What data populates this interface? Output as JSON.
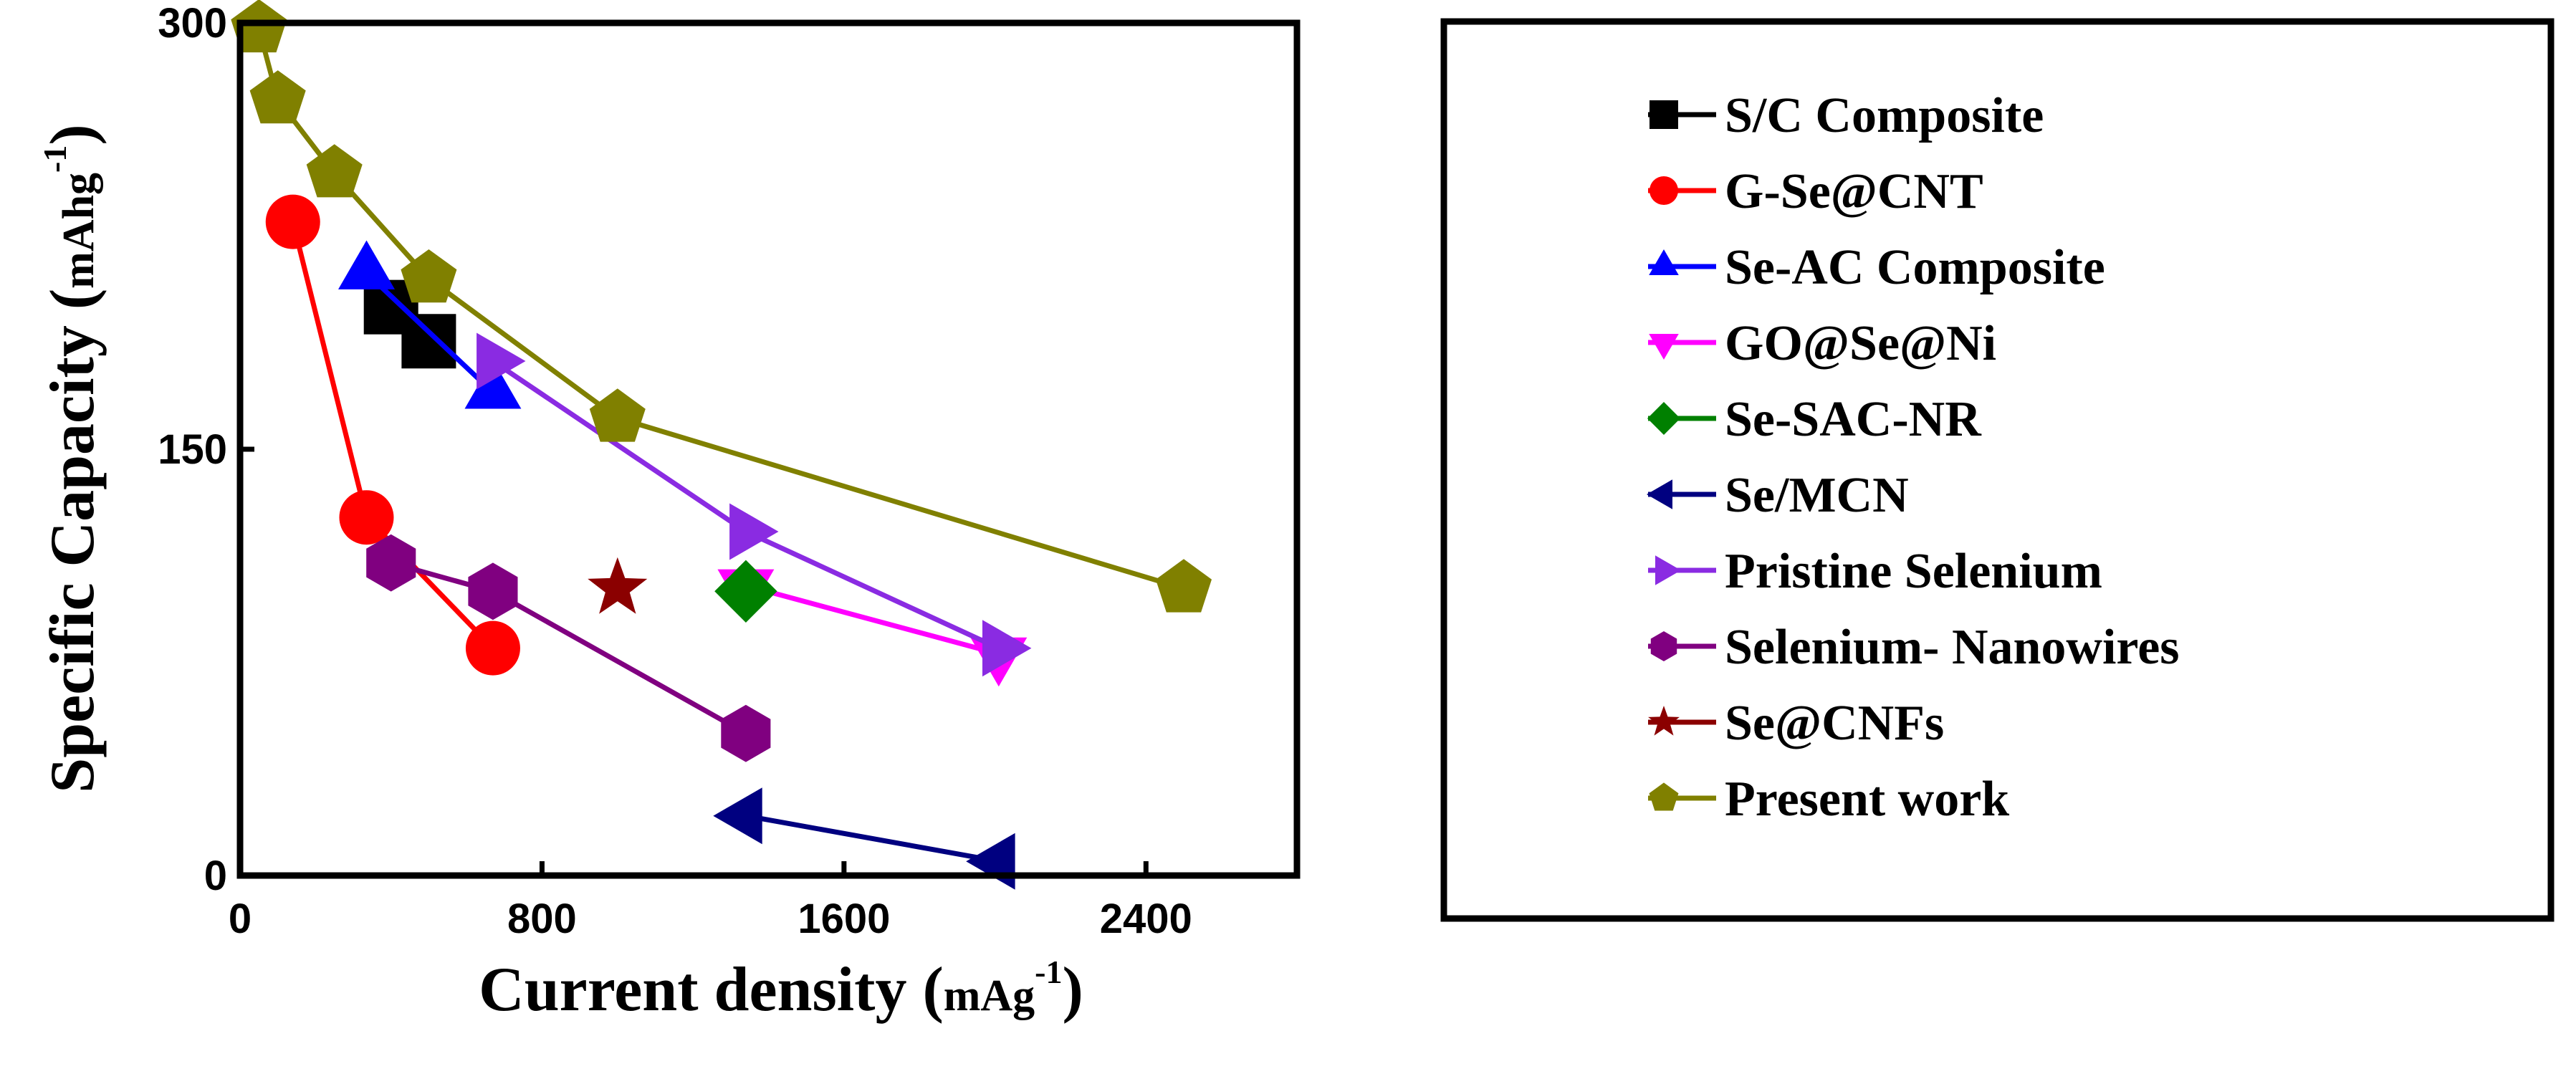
{
  "chart_data": {
    "type": "line",
    "xlabel": "Current density",
    "xunit_main": "mAg",
    "xunit_sup": "-1",
    "ylabel": "Specific Capacity",
    "yunit_main": "mAhg",
    "yunit_sup": "-1",
    "xlim": [
      0,
      2800
    ],
    "ylim": [
      0,
      300
    ],
    "xticks": [
      0,
      800,
      1600,
      2400
    ],
    "yticks": [
      0,
      150,
      300
    ],
    "legend_position": "right, outside plot",
    "series": [
      {
        "name": "S/C Composite",
        "color": "#000000",
        "marker": "square",
        "x": [
          400,
          500
        ],
        "y": [
          200,
          188
        ]
      },
      {
        "name": "G-Se@CNT",
        "color": "#ff0000",
        "marker": "circle",
        "x": [
          140,
          335,
          670
        ],
        "y": [
          230,
          126,
          80
        ]
      },
      {
        "name": "Se-AC Composite",
        "color": "#0000ff",
        "marker": "triangle-up",
        "x": [
          335,
          670
        ],
        "y": [
          212,
          170
        ]
      },
      {
        "name": "GO@Se@Ni",
        "color": "#ff00ff",
        "marker": "triangle-down",
        "x": [
          1340,
          2010
        ],
        "y": [
          102,
          78
        ]
      },
      {
        "name": "Se-SAC-NR",
        "color": "#008000",
        "marker": "diamond",
        "x": [
          1340
        ],
        "y": [
          100
        ]
      },
      {
        "name": "Se/MCN",
        "color": "#000080",
        "marker": "triangle-left",
        "x": [
          1340,
          2010
        ],
        "y": [
          21,
          5
        ]
      },
      {
        "name": "Pristine Selenium",
        "color": "#8a2be2",
        "marker": "triangle-right",
        "x": [
          670,
          1340,
          2010
        ],
        "y": [
          181,
          121,
          80
        ]
      },
      {
        "name": "Selenium- Nanowires",
        "color": "#800080",
        "marker": "hexagon",
        "x": [
          400,
          670,
          1340
        ],
        "y": [
          110,
          100,
          50
        ]
      },
      {
        "name": "Se@CNFs",
        "color": "#8b0000",
        "marker": "star",
        "x": [
          1000
        ],
        "y": [
          101
        ]
      },
      {
        "name": "Present work",
        "color": "#808000",
        "marker": "pentagon",
        "x": [
          50,
          100,
          250,
          500,
          1000,
          2500
        ],
        "y": [
          298,
          273,
          247,
          210,
          161,
          101
        ]
      }
    ]
  }
}
